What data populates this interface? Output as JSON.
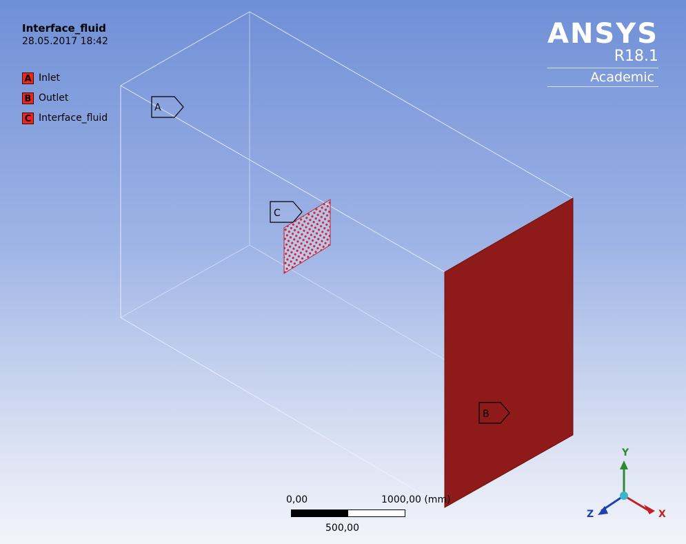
{
  "header": {
    "title": "Interface_fluid",
    "datetime": "28.05.2017 18:42"
  },
  "legend": [
    {
      "key": "A",
      "label": "Inlet"
    },
    {
      "key": "B",
      "label": "Outlet"
    },
    {
      "key": "C",
      "label": "Interface_fluid"
    }
  ],
  "logo": {
    "name": "ANSYS",
    "version": "R18.1",
    "edition": "Academic"
  },
  "markers": {
    "a": "A",
    "b": "B",
    "c": "C"
  },
  "scale": {
    "left": "0,00",
    "right": "1000,00 (mm)",
    "middle": "500,00"
  },
  "triad": {
    "x": "X",
    "y": "Y",
    "z": "Z"
  },
  "colors": {
    "selection_red": "#f1241a",
    "outlet_face": "#8f1a1a",
    "axis_x": "#c0201f",
    "axis_y": "#2e8a2e",
    "axis_z": "#1f3fb0",
    "background_top": "#6f8fd6",
    "background_bottom": "#f2f4fb"
  }
}
